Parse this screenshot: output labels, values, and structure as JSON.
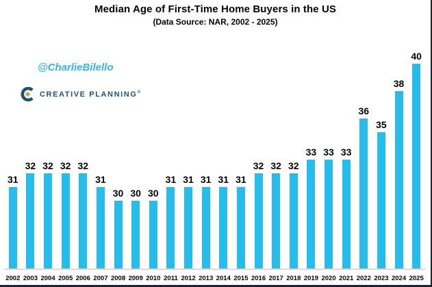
{
  "header": {
    "title": "Median Age of First-Time Home Buyers in the US",
    "subtitle": "(Data Source: NAR, 2002 - 2025)"
  },
  "watermark": "@CharlieBilello",
  "brand": {
    "name": "CREATIVE PLANNING",
    "trademark": "®",
    "logo_icon": "creative-planning-c-logo",
    "navy": "#1f5276",
    "gold": "#c5a15e"
  },
  "chart_data": {
    "type": "bar",
    "title": "Median Age of First-Time Home Buyers in the US",
    "subtitle": "(Data Source: NAR, 2002 - 2025)",
    "categories": [
      "2002",
      "2003",
      "2004",
      "2005",
      "2006",
      "2007",
      "2008",
      "2009",
      "2010",
      "2011",
      "2012",
      "2013",
      "2014",
      "2015",
      "2016",
      "2017",
      "2018",
      "2019",
      "2020",
      "2021",
      "2022",
      "2023",
      "2024",
      "2025"
    ],
    "values": [
      31,
      32,
      32,
      32,
      32,
      31,
      30,
      30,
      30,
      31,
      31,
      31,
      31,
      31,
      32,
      32,
      32,
      33,
      33,
      33,
      36,
      35,
      38,
      40
    ],
    "xlabel": "",
    "ylabel": "",
    "ylim": [
      25,
      41
    ],
    "grid": false,
    "legend": false,
    "data_labels": true,
    "bar_color": "#26bcec",
    "axis_line_color": "#d9d9d9",
    "label_color": "#000000"
  }
}
